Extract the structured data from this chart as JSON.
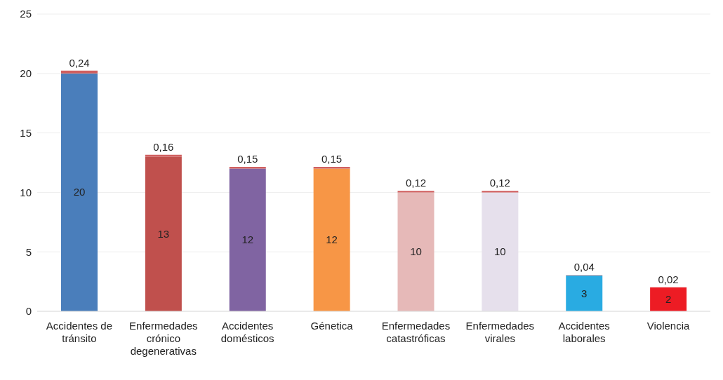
{
  "chart_data": {
    "type": "bar",
    "stacked": true,
    "categories": [
      "Accidentes de tránsito",
      "Enfermedades crónico degenerativas",
      "Accidentes domésticos",
      "Génetica",
      "Enfermedades catastróficas",
      "Enfermedades virales",
      "Accidentes laborales",
      "Violencia"
    ],
    "series": [
      {
        "colors": [
          "#4a7ebb",
          "#c0504d",
          "#8064a2",
          "#f79646",
          "#e6b9b8",
          "#e6e0ec",
          "#29abe2",
          "#ed1c24"
        ],
        "values": [
          20,
          13,
          12,
          12,
          10,
          10,
          3,
          2
        ],
        "value_labels": [
          "20",
          "13",
          "12",
          "12",
          "10",
          "10",
          "3",
          "2"
        ]
      },
      {
        "color": "#d06060",
        "values": [
          0.24,
          0.16,
          0.15,
          0.15,
          0.12,
          0.12,
          0.04,
          0.02
        ],
        "value_labels": [
          "0,24",
          "0,16",
          "0,15",
          "0,15",
          "0,12",
          "0,12",
          "0,04",
          "0,02"
        ]
      }
    ],
    "ylim": [
      0,
      25
    ],
    "yticks": [
      0,
      5,
      10,
      15,
      20,
      25
    ],
    "grid": "y"
  }
}
